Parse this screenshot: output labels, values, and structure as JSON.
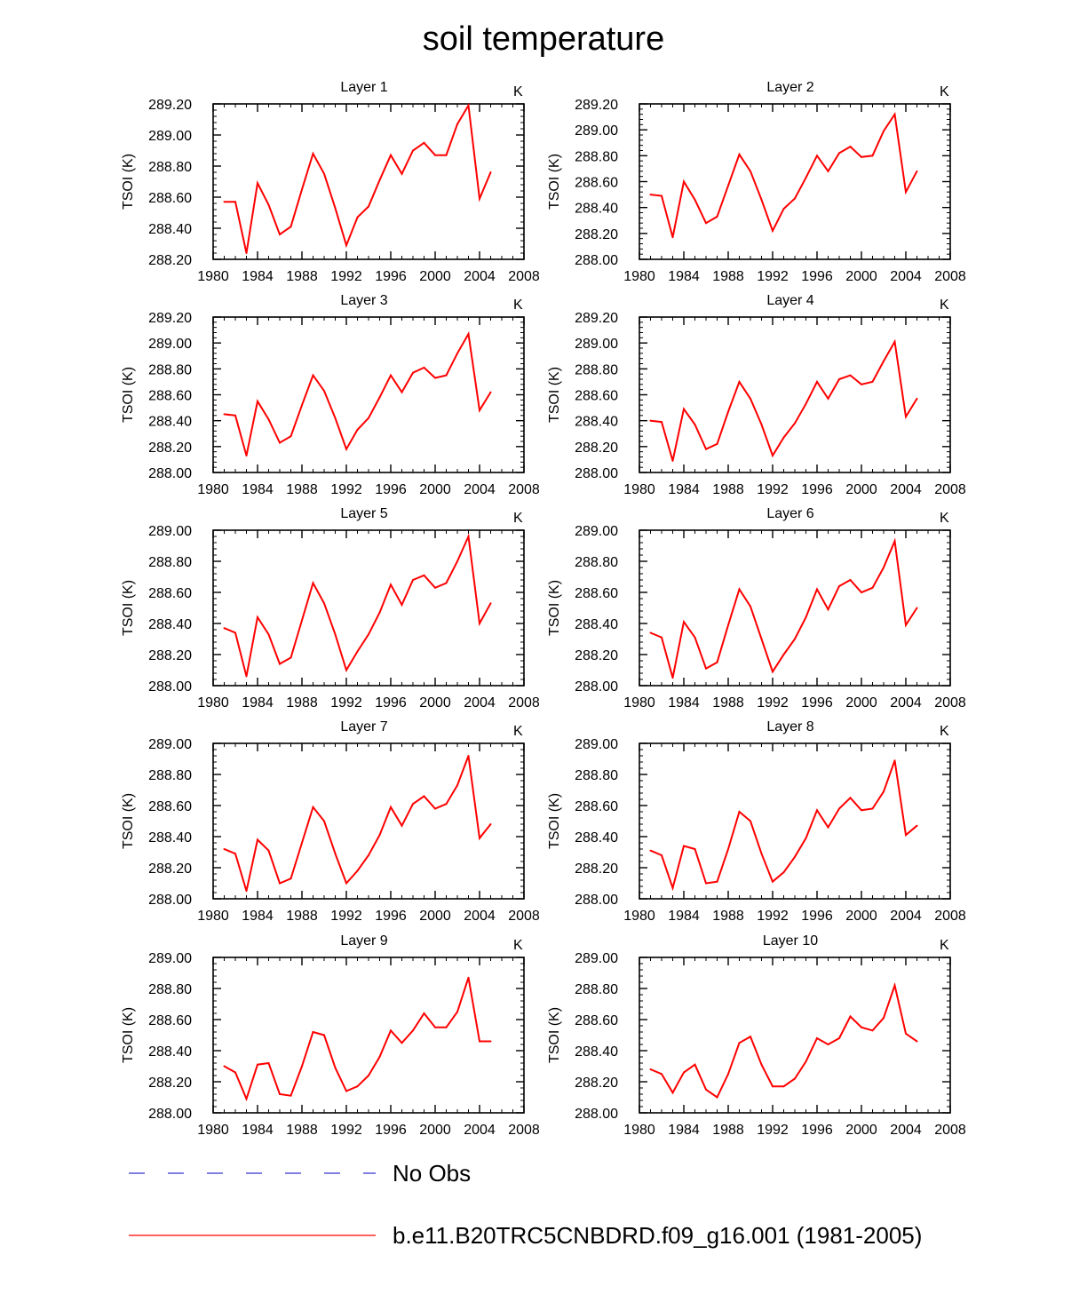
{
  "title": "soil temperature",
  "years": [
    1981,
    1982,
    1983,
    1984,
    1985,
    1986,
    1987,
    1988,
    1989,
    1990,
    1991,
    1992,
    1993,
    1994,
    1995,
    1996,
    1997,
    1998,
    1999,
    2000,
    2001,
    2002,
    2003,
    2004,
    2005
  ],
  "colors": {
    "model": "#ff0000",
    "obs": "#3333cc",
    "axis": "#000000"
  },
  "legend": {
    "obs_label": "No Obs",
    "model_label": "b.e11.B20TRC5CNBDRD.f09_g16.001 (1981-2005)"
  },
  "chart_data": [
    {
      "type": "line",
      "title": "Layer 1",
      "units": "K",
      "ylabel": "TSOI  (K)",
      "xlim": [
        1980,
        2008
      ],
      "xticks": [
        "1980",
        "1984",
        "1988",
        "1992",
        "1996",
        "2000",
        "2004",
        "2008"
      ],
      "ylim": [
        288.2,
        289.2
      ],
      "yticks": [
        "288.20",
        "288.40",
        "288.60",
        "288.80",
        "289.00",
        "289.20"
      ],
      "values": [
        288.57,
        288.57,
        288.24,
        288.69,
        288.55,
        288.36,
        288.41,
        288.65,
        288.88,
        288.75,
        288.53,
        288.29,
        288.47,
        288.54,
        288.71,
        288.87,
        288.75,
        288.9,
        288.95,
        288.87,
        288.87,
        289.07,
        289.19,
        288.59,
        288.76
      ]
    },
    {
      "type": "line",
      "title": "Layer 2",
      "units": "K",
      "ylabel": "TSOI  (K)",
      "xlim": [
        1980,
        2008
      ],
      "xticks": [
        "1980",
        "1984",
        "1988",
        "1992",
        "1996",
        "2000",
        "2004",
        "2008"
      ],
      "ylim": [
        288.0,
        289.2
      ],
      "yticks": [
        "288.00",
        "288.20",
        "288.40",
        "288.60",
        "288.80",
        "289.00",
        "289.20"
      ],
      "values": [
        288.5,
        288.49,
        288.17,
        288.6,
        288.46,
        288.28,
        288.33,
        288.57,
        288.81,
        288.68,
        288.46,
        288.22,
        288.39,
        288.47,
        288.63,
        288.8,
        288.68,
        288.82,
        288.87,
        288.79,
        288.8,
        288.99,
        289.12,
        288.52,
        288.68
      ]
    },
    {
      "type": "line",
      "title": "Layer 3",
      "units": "K",
      "ylabel": "TSOI  (K)",
      "xlim": [
        1980,
        2008
      ],
      "xticks": [
        "1980",
        "1984",
        "1988",
        "1992",
        "1996",
        "2000",
        "2004",
        "2008"
      ],
      "ylim": [
        288.0,
        289.2
      ],
      "yticks": [
        "288.00",
        "288.20",
        "288.40",
        "288.60",
        "288.80",
        "289.00",
        "289.20"
      ],
      "values": [
        288.45,
        288.44,
        288.13,
        288.55,
        288.41,
        288.23,
        288.28,
        288.52,
        288.75,
        288.63,
        288.42,
        288.18,
        288.33,
        288.42,
        288.58,
        288.75,
        288.62,
        288.77,
        288.81,
        288.73,
        288.75,
        288.92,
        289.07,
        288.48,
        288.62
      ]
    },
    {
      "type": "line",
      "title": "Layer 4",
      "units": "K",
      "ylabel": "TSOI  (K)",
      "xlim": [
        1980,
        2008
      ],
      "xticks": [
        "1980",
        "1984",
        "1988",
        "1992",
        "1996",
        "2000",
        "2004",
        "2008"
      ],
      "ylim": [
        288.0,
        289.2
      ],
      "yticks": [
        "288.00",
        "288.20",
        "288.40",
        "288.60",
        "288.80",
        "289.00",
        "289.20"
      ],
      "values": [
        288.4,
        288.39,
        288.09,
        288.49,
        288.37,
        288.18,
        288.22,
        288.47,
        288.7,
        288.57,
        288.37,
        288.13,
        288.27,
        288.38,
        288.53,
        288.7,
        288.57,
        288.72,
        288.75,
        288.68,
        288.7,
        288.86,
        289.01,
        288.43,
        288.57
      ]
    },
    {
      "type": "line",
      "title": "Layer 5",
      "units": "K",
      "ylabel": "TSOI  (K)",
      "xlim": [
        1980,
        2008
      ],
      "xticks": [
        "1980",
        "1984",
        "1988",
        "1992",
        "1996",
        "2000",
        "2004",
        "2008"
      ],
      "ylim": [
        288.0,
        289.0
      ],
      "yticks": [
        "288.00",
        "288.20",
        "288.40",
        "288.60",
        "288.80",
        "289.00"
      ],
      "values": [
        288.37,
        288.34,
        288.06,
        288.44,
        288.33,
        288.14,
        288.18,
        288.42,
        288.66,
        288.53,
        288.33,
        288.1,
        288.22,
        288.33,
        288.47,
        288.65,
        288.52,
        288.68,
        288.71,
        288.63,
        288.66,
        288.8,
        288.96,
        288.4,
        288.53
      ]
    },
    {
      "type": "line",
      "title": "Layer 6",
      "units": "K",
      "ylabel": "TSOI  (K)",
      "xlim": [
        1980,
        2008
      ],
      "xticks": [
        "1980",
        "1984",
        "1988",
        "1992",
        "1996",
        "2000",
        "2004",
        "2008"
      ],
      "ylim": [
        288.0,
        289.0
      ],
      "yticks": [
        "288.00",
        "288.20",
        "288.40",
        "288.60",
        "288.80",
        "289.00"
      ],
      "values": [
        288.34,
        288.31,
        288.05,
        288.41,
        288.31,
        288.11,
        288.15,
        288.39,
        288.62,
        288.51,
        288.3,
        288.09,
        288.2,
        288.3,
        288.44,
        288.62,
        288.49,
        288.64,
        288.68,
        288.6,
        288.63,
        288.76,
        288.93,
        288.39,
        288.5
      ]
    },
    {
      "type": "line",
      "title": "Layer 7",
      "units": "K",
      "ylabel": "TSOI  (K)",
      "xlim": [
        1980,
        2008
      ],
      "xticks": [
        "1980",
        "1984",
        "1988",
        "1992",
        "1996",
        "2000",
        "2004",
        "2008"
      ],
      "ylim": [
        288.0,
        289.0
      ],
      "yticks": [
        "288.00",
        "288.20",
        "288.40",
        "288.60",
        "288.80",
        "289.00"
      ],
      "values": [
        288.32,
        288.29,
        288.05,
        288.38,
        288.31,
        288.1,
        288.13,
        288.36,
        288.59,
        288.5,
        288.29,
        288.1,
        288.18,
        288.28,
        288.41,
        288.59,
        288.47,
        288.61,
        288.66,
        288.58,
        288.61,
        288.73,
        288.92,
        288.39,
        288.48
      ]
    },
    {
      "type": "line",
      "title": "Layer 8",
      "units": "K",
      "ylabel": "TSOI  (K)",
      "xlim": [
        1980,
        2008
      ],
      "xticks": [
        "1980",
        "1984",
        "1988",
        "1992",
        "1996",
        "2000",
        "2004",
        "2008"
      ],
      "ylim": [
        288.0,
        289.0
      ],
      "yticks": [
        "288.00",
        "288.20",
        "288.40",
        "288.60",
        "288.80",
        "289.00"
      ],
      "values": [
        288.31,
        288.28,
        288.07,
        288.34,
        288.32,
        288.1,
        288.11,
        288.32,
        288.56,
        288.5,
        288.29,
        288.11,
        288.17,
        288.27,
        288.39,
        288.57,
        288.46,
        288.58,
        288.65,
        288.57,
        288.58,
        288.69,
        288.89,
        288.41,
        288.47
      ]
    },
    {
      "type": "line",
      "title": "Layer 9",
      "units": "K",
      "ylabel": "TSOI  (K)",
      "xlim": [
        1980,
        2008
      ],
      "xticks": [
        "1980",
        "1984",
        "1988",
        "1992",
        "1996",
        "2000",
        "2004",
        "2008"
      ],
      "ylim": [
        288.0,
        289.0
      ],
      "yticks": [
        "288.00",
        "288.20",
        "288.40",
        "288.60",
        "288.80",
        "289.00"
      ],
      "values": [
        288.3,
        288.26,
        288.09,
        288.31,
        288.32,
        288.12,
        288.11,
        288.3,
        288.52,
        288.5,
        288.29,
        288.14,
        288.17,
        288.24,
        288.36,
        288.53,
        288.45,
        288.53,
        288.64,
        288.55,
        288.55,
        288.65,
        288.87,
        288.46,
        288.46
      ]
    },
    {
      "type": "line",
      "title": "Layer 10",
      "units": "K",
      "ylabel": "TSOI  (K)",
      "xlim": [
        1980,
        2008
      ],
      "xticks": [
        "1980",
        "1984",
        "1988",
        "1992",
        "1996",
        "2000",
        "2004",
        "2008"
      ],
      "ylim": [
        288.0,
        289.0
      ],
      "yticks": [
        "288.00",
        "288.20",
        "288.40",
        "288.60",
        "288.80",
        "289.00"
      ],
      "values": [
        288.28,
        288.25,
        288.13,
        288.26,
        288.31,
        288.15,
        288.1,
        288.25,
        288.45,
        288.49,
        288.31,
        288.17,
        288.17,
        288.22,
        288.33,
        288.48,
        288.44,
        288.48,
        288.62,
        288.55,
        288.53,
        288.61,
        288.82,
        288.51,
        288.46
      ]
    }
  ]
}
